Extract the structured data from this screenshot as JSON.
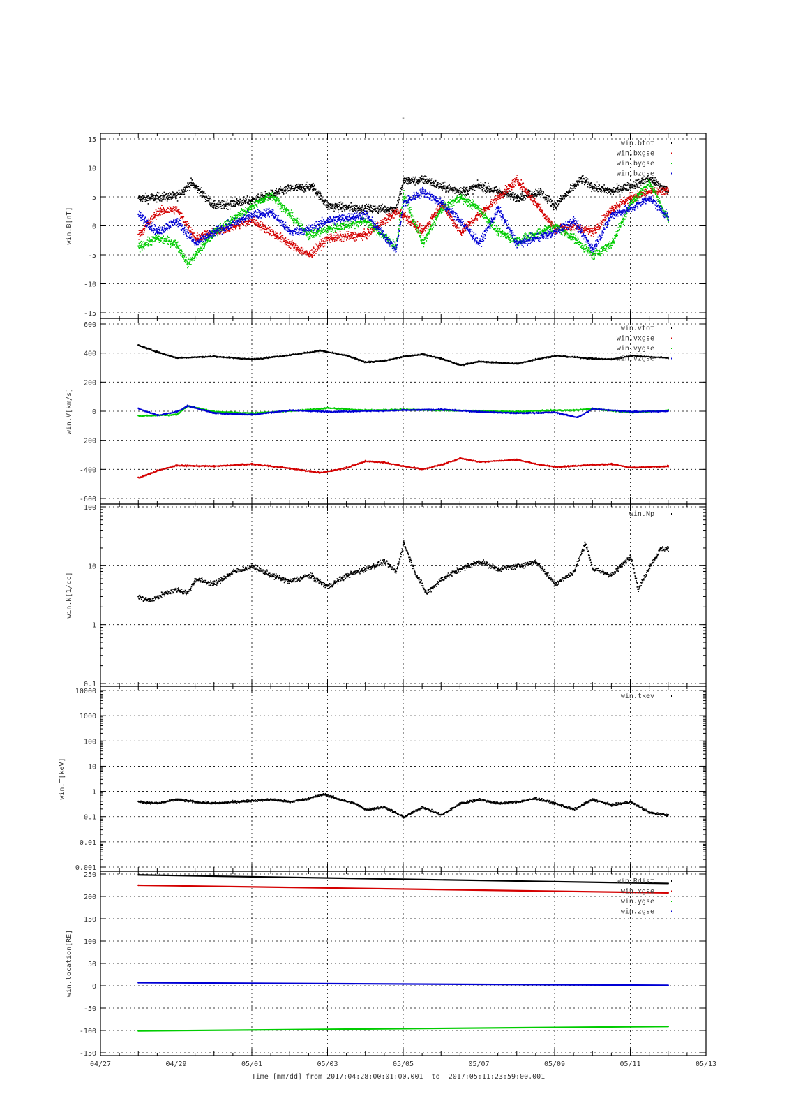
{
  "chart_data": [
    {
      "type": "scatter",
      "title": "-",
      "ylabel": "win.B[nT]",
      "yscale": "linear",
      "ylim": [
        -15,
        15
      ],
      "yticks": [
        -15,
        -10,
        -5,
        0,
        5,
        10,
        15
      ],
      "grid": true,
      "legend_position": "top-right",
      "series": [
        {
          "name": "win.btot",
          "color": "#000000",
          "x": [
            "04/28",
            "04/29",
            "04/29.4",
            "04/30",
            "05/01",
            "05/02",
            "05/02.6",
            "05/03",
            "05/04",
            "05/04.8",
            "05/05",
            "05/05.6",
            "05/06",
            "05/06.6",
            "05/07",
            "05/08",
            "05/08.6",
            "05/09",
            "05/09.7",
            "05/10",
            "05/10.5",
            "05/11",
            "05/11.5",
            "05/12"
          ],
          "y": [
            4.8,
            5.2,
            7.5,
            3.5,
            4.5,
            6.5,
            6.8,
            3.5,
            3,
            3,
            7.8,
            8,
            6.8,
            6,
            7,
            5,
            6,
            3.5,
            8.2,
            6.8,
            6,
            7,
            8.2,
            6
          ]
        },
        {
          "name": "win.bxgse",
          "color": "#d40000",
          "x": [
            "04/28",
            "04/28.5",
            "04/29",
            "04/29.5",
            "04/30",
            "05/01",
            "05/02",
            "05/02.5",
            "05/03",
            "05/04",
            "05/04.8",
            "05/05",
            "05/05.5",
            "05/06",
            "05/06.5",
            "05/07",
            "05/08",
            "05/08.5",
            "05/09",
            "05/09.5",
            "05/10",
            "05/10.5",
            "05/11",
            "05/11.5",
            "05/12"
          ],
          "y": [
            -1.5,
            2.5,
            3,
            -2,
            -1,
            1,
            -3,
            -5,
            -2,
            -1.5,
            2.5,
            2,
            -1,
            4,
            -1,
            2,
            8,
            4,
            -0.5,
            0,
            -1,
            3,
            5,
            6,
            6
          ]
        },
        {
          "name": "win.bygse",
          "color": "#00cc00",
          "x": [
            "04/28",
            "04/28.5",
            "04/29",
            "04/29.3",
            "04/30",
            "05/01",
            "05/01.5",
            "05/02",
            "05/02.5",
            "05/03",
            "05/04",
            "05/04.8",
            "05/05",
            "05/05.5",
            "05/06",
            "05/06.5",
            "05/07",
            "05/07.5",
            "05/08",
            "05/09",
            "05/09.5",
            "05/10",
            "05/10.5",
            "05/11",
            "05/11.5",
            "05/12"
          ],
          "y": [
            -3.5,
            -2,
            -3,
            -6.5,
            -1,
            3.5,
            5.5,
            2,
            -1.5,
            -0.5,
            1,
            -3.5,
            5.5,
            -3,
            3,
            5,
            3,
            -1,
            -2.5,
            0,
            -2,
            -5,
            -3,
            4,
            7.5,
            1
          ]
        },
        {
          "name": "win.bzgse",
          "color": "#0000d4",
          "x": [
            "04/28",
            "04/28.5",
            "04/29",
            "04/29.5",
            "04/30",
            "05/01",
            "05/01.5",
            "05/02",
            "05/02.5",
            "05/03",
            "05/04",
            "05/04.8",
            "05/05",
            "05/05.5",
            "05/06",
            "05/06.5",
            "05/07",
            "05/07.5",
            "05/08",
            "05/09",
            "05/09.5",
            "05/10",
            "05/10.5",
            "05/11",
            "05/11.5",
            "05/12"
          ],
          "y": [
            2,
            -1,
            1,
            -3,
            -1,
            2,
            2.5,
            -1,
            -0.5,
            1,
            2,
            -4,
            4,
            6,
            4,
            1,
            -3,
            3,
            -3,
            -1,
            1,
            -4,
            2,
            3,
            5,
            1.5
          ]
        }
      ]
    },
    {
      "type": "scatter",
      "ylabel": "win.V[km/s]",
      "yscale": "linear",
      "ylim": [
        -600,
        600
      ],
      "yticks": [
        -600,
        -400,
        -200,
        0,
        200,
        400,
        600
      ],
      "grid": true,
      "legend_position": "top-right",
      "series": [
        {
          "name": "win.vtot",
          "color": "#000000",
          "x": [
            "04/28",
            "04/28.5",
            "04/29",
            "04/30",
            "05/01",
            "05/02",
            "05/02.8",
            "05/03.5",
            "05/04",
            "05/04.5",
            "05/05",
            "05/05.5",
            "05/06",
            "05/06.5",
            "05/07",
            "05/08",
            "05/08.5",
            "05/09",
            "05/10",
            "05/10.5",
            "05/11",
            "05/12"
          ],
          "y": [
            455,
            410,
            370,
            380,
            360,
            390,
            420,
            385,
            340,
            350,
            380,
            395,
            365,
            320,
            345,
            330,
            360,
            385,
            365,
            360,
            385,
            370
          ]
        },
        {
          "name": "win.vxgse",
          "color": "#d40000",
          "x": [
            "04/28",
            "04/28.5",
            "04/29",
            "04/30",
            "05/01",
            "05/02",
            "05/02.8",
            "05/03.5",
            "05/04",
            "05/04.5",
            "05/05",
            "05/05.5",
            "05/06",
            "05/06.5",
            "05/07",
            "05/08",
            "05/08.5",
            "05/09",
            "05/10",
            "05/10.5",
            "05/11",
            "05/12"
          ],
          "y": [
            -455,
            -405,
            -370,
            -375,
            -360,
            -390,
            -420,
            -385,
            -340,
            -350,
            -375,
            -395,
            -365,
            -320,
            -345,
            -330,
            -360,
            -380,
            -365,
            -360,
            -385,
            -375
          ]
        },
        {
          "name": "win.vygse",
          "color": "#00cc00",
          "x": [
            "04/28",
            "04/29",
            "04/29.3",
            "04/30",
            "05/01",
            "05/02",
            "05/03",
            "05/04",
            "05/05",
            "05/06",
            "05/07",
            "05/08",
            "05/09",
            "05/09.5",
            "05/10",
            "05/11",
            "05/12"
          ],
          "y": [
            -30,
            -20,
            40,
            0,
            -10,
            5,
            25,
            10,
            15,
            10,
            5,
            0,
            10,
            10,
            20,
            -5,
            10
          ]
        },
        {
          "name": "win.vzgse",
          "color": "#0000d4",
          "x": [
            "04/28",
            "04/28.5",
            "04/29",
            "04/29.3",
            "04/30",
            "05/01",
            "05/02",
            "05/03",
            "05/04",
            "05/05",
            "05/06",
            "05/07",
            "05/08",
            "05/09",
            "05/09.6",
            "05/10",
            "05/11",
            "05/12"
          ],
          "y": [
            20,
            -25,
            0,
            40,
            -10,
            -20,
            10,
            0,
            5,
            10,
            15,
            0,
            -10,
            -5,
            -40,
            20,
            0,
            5
          ]
        }
      ]
    },
    {
      "type": "scatter",
      "ylabel": "win.N[1/cc]",
      "yscale": "log",
      "ylim": [
        0.1,
        100
      ],
      "ytick_labels": [
        "0.1",
        "1",
        "10",
        "100"
      ],
      "grid": true,
      "legend_position": "top-right",
      "series": [
        {
          "name": "win.Np",
          "color": "#000000",
          "x": [
            "04/28",
            "04/28.3",
            "04/28.7",
            "04/29",
            "04/29.3",
            "04/29.5",
            "04/30",
            "04/30.5",
            "05/01",
            "05/01.5",
            "05/02",
            "05/02.5",
            "05/03",
            "05/03.5",
            "05/04",
            "05/04.5",
            "05/04.8",
            "05/05",
            "05/05.3",
            "05/05.6",
            "05/06",
            "05/06.5",
            "05/07",
            "05/07.5",
            "05/08",
            "05/08.5",
            "05/09",
            "05/09.5",
            "05/09.8",
            "05/10",
            "05/10.5",
            "05/11",
            "05/11.2",
            "05/11.5",
            "05/11.8",
            "05/12"
          ],
          "y": [
            3,
            2.6,
            3.5,
            4,
            3.5,
            6,
            5,
            8,
            10,
            7,
            5.5,
            7,
            4.5,
            7,
            9,
            12,
            8,
            25,
            8,
            3.5,
            6,
            9,
            12,
            9,
            10,
            12,
            5,
            8,
            25,
            9,
            7,
            15,
            4,
            10,
            20,
            20
          ]
        }
      ]
    },
    {
      "type": "scatter",
      "ylabel": "win.T[keV]",
      "yscale": "log",
      "ylim": [
        0.001,
        10000
      ],
      "ytick_labels": [
        "0.001",
        "0.01",
        "0.1",
        "1",
        "10",
        "100",
        "1000",
        "10000"
      ],
      "grid": true,
      "legend_position": "top-right",
      "series": [
        {
          "name": "win.tkev",
          "color": "#000000",
          "x": [
            "04/28",
            "04/28.5",
            "04/29",
            "04/29.5",
            "04/30",
            "05/01",
            "05/01.5",
            "05/02",
            "05/02.5",
            "05/02.9",
            "05/03.3",
            "05/03.7",
            "05/04",
            "05/04.5",
            "05/05",
            "05/05.5",
            "05/06",
            "05/06.5",
            "05/07",
            "05/07.5",
            "05/08",
            "05/08.5",
            "05/09",
            "05/09.5",
            "05/10",
            "05/10.5",
            "05/11",
            "05/11.5",
            "05/12"
          ],
          "y": [
            0.4,
            0.35,
            0.5,
            0.4,
            0.35,
            0.45,
            0.5,
            0.4,
            0.55,
            0.8,
            0.5,
            0.35,
            0.2,
            0.25,
            0.1,
            0.25,
            0.12,
            0.35,
            0.5,
            0.35,
            0.4,
            0.55,
            0.35,
            0.2,
            0.5,
            0.3,
            0.4,
            0.15,
            0.12
          ]
        }
      ]
    },
    {
      "type": "line",
      "ylabel": "win.location[RE]",
      "yscale": "linear",
      "ylim": [
        -150,
        250
      ],
      "yticks": [
        -150,
        -100,
        -50,
        0,
        50,
        100,
        150,
        200,
        250
      ],
      "grid": true,
      "legend_position": "top-right",
      "xlim": [
        "04/27",
        "05/13"
      ],
      "xtick_labels": [
        "04/27",
        "04/29",
        "05/01",
        "05/03",
        "05/05",
        "05/07",
        "05/09",
        "05/11",
        "05/13"
      ],
      "xlabel": "Time [mm/dd]",
      "xlabel_extra": "from 2017:04:28:00:01:00.001  to  2017:05:11:23:59:00.001",
      "series": [
        {
          "name": "win.Rdist",
          "color": "#000000",
          "x": [
            "04/28",
            "05/12"
          ],
          "y": [
            248,
            229
          ]
        },
        {
          "name": "win.xgse",
          "color": "#d40000",
          "x": [
            "04/28",
            "05/12"
          ],
          "y": [
            225,
            208
          ]
        },
        {
          "name": "win.ygse",
          "color": "#00cc00",
          "x": [
            "04/28",
            "05/12"
          ],
          "y": [
            -101,
            -91
          ]
        },
        {
          "name": "win.zgse",
          "color": "#0000d4",
          "x": [
            "04/28",
            "05/12"
          ],
          "y": [
            7,
            1
          ]
        }
      ]
    }
  ]
}
